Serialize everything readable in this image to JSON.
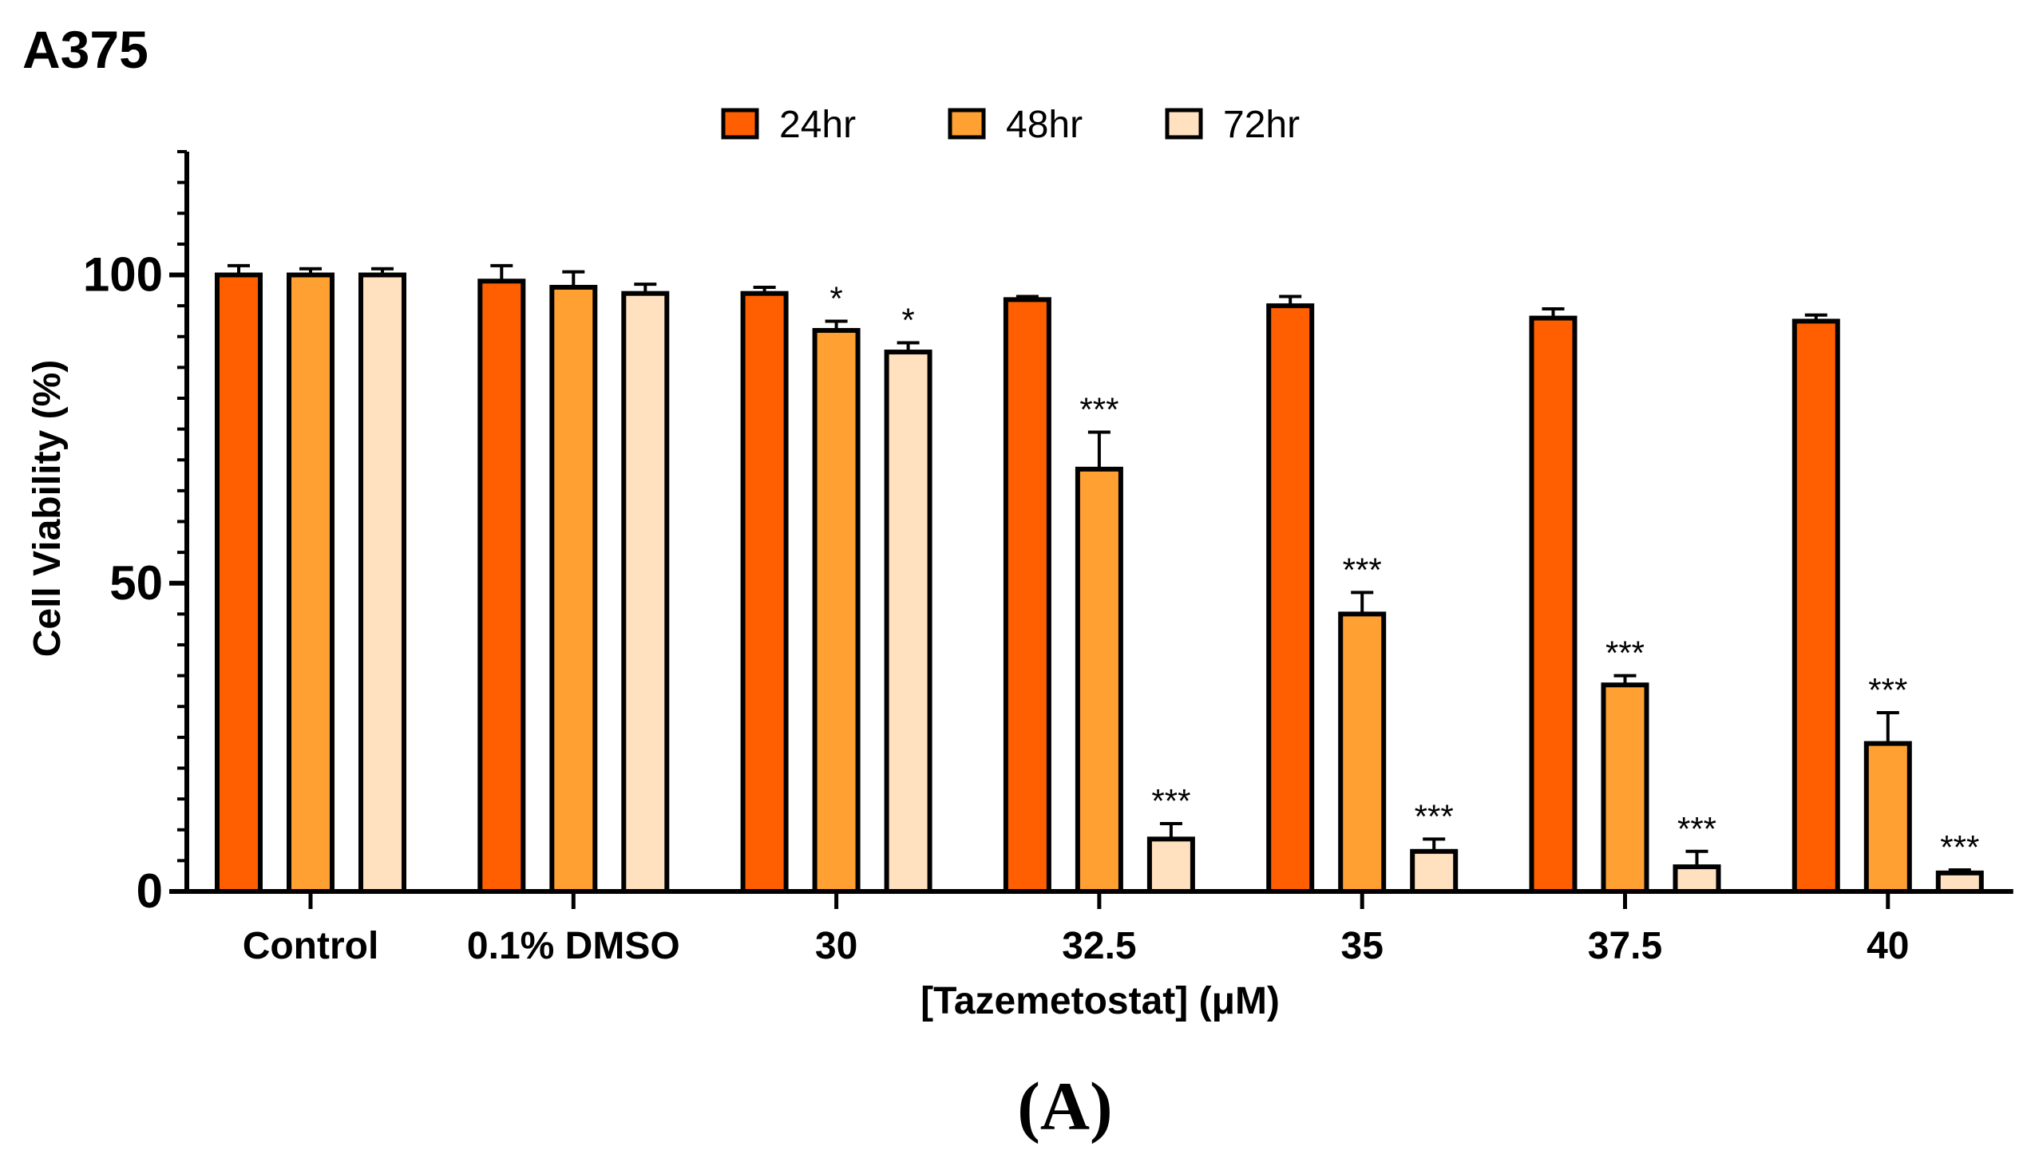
{
  "panel_title": "A375",
  "caption": "(A)",
  "chart_data": {
    "type": "bar",
    "title": "A375",
    "xlabel": "[Tazemetostat] (μM)",
    "ylabel": "Cell Viability (%)",
    "ylim": [
      0,
      120
    ],
    "yticks": [
      0,
      50,
      100
    ],
    "ytick_labels": [
      "0",
      "50",
      "100"
    ],
    "minor_tick_step": 5,
    "legend_position": "top-center",
    "categories": [
      "Control",
      "0.1% DMSO",
      "30",
      "32.5",
      "35",
      "37.5",
      "40"
    ],
    "series": [
      {
        "name": "24hr",
        "color": "#FF5F00",
        "values": [
          100,
          99,
          97,
          96,
          95,
          93,
          92.5
        ],
        "errors": [
          1.5,
          2.5,
          1.0,
          0.5,
          1.5,
          1.5,
          1.0
        ],
        "significance": [
          "",
          "",
          "",
          "",
          "",
          "",
          ""
        ]
      },
      {
        "name": "48hr",
        "color": "#FFA033",
        "values": [
          100,
          98,
          91,
          68.5,
          45,
          33.5,
          24
        ],
        "errors": [
          1.0,
          2.5,
          1.5,
          6.0,
          3.5,
          1.5,
          5.0
        ],
        "significance": [
          "",
          "",
          "*",
          "***",
          "***",
          "***",
          "***"
        ]
      },
      {
        "name": "72hr",
        "color": "#FFE0BF",
        "values": [
          100,
          97,
          87.5,
          8.5,
          6.5,
          4,
          3
        ],
        "errors": [
          1.0,
          1.5,
          1.5,
          2.5,
          2.0,
          2.5,
          0.5
        ],
        "significance": [
          "",
          "",
          "*",
          "***",
          "***",
          "***",
          "***"
        ]
      }
    ]
  }
}
